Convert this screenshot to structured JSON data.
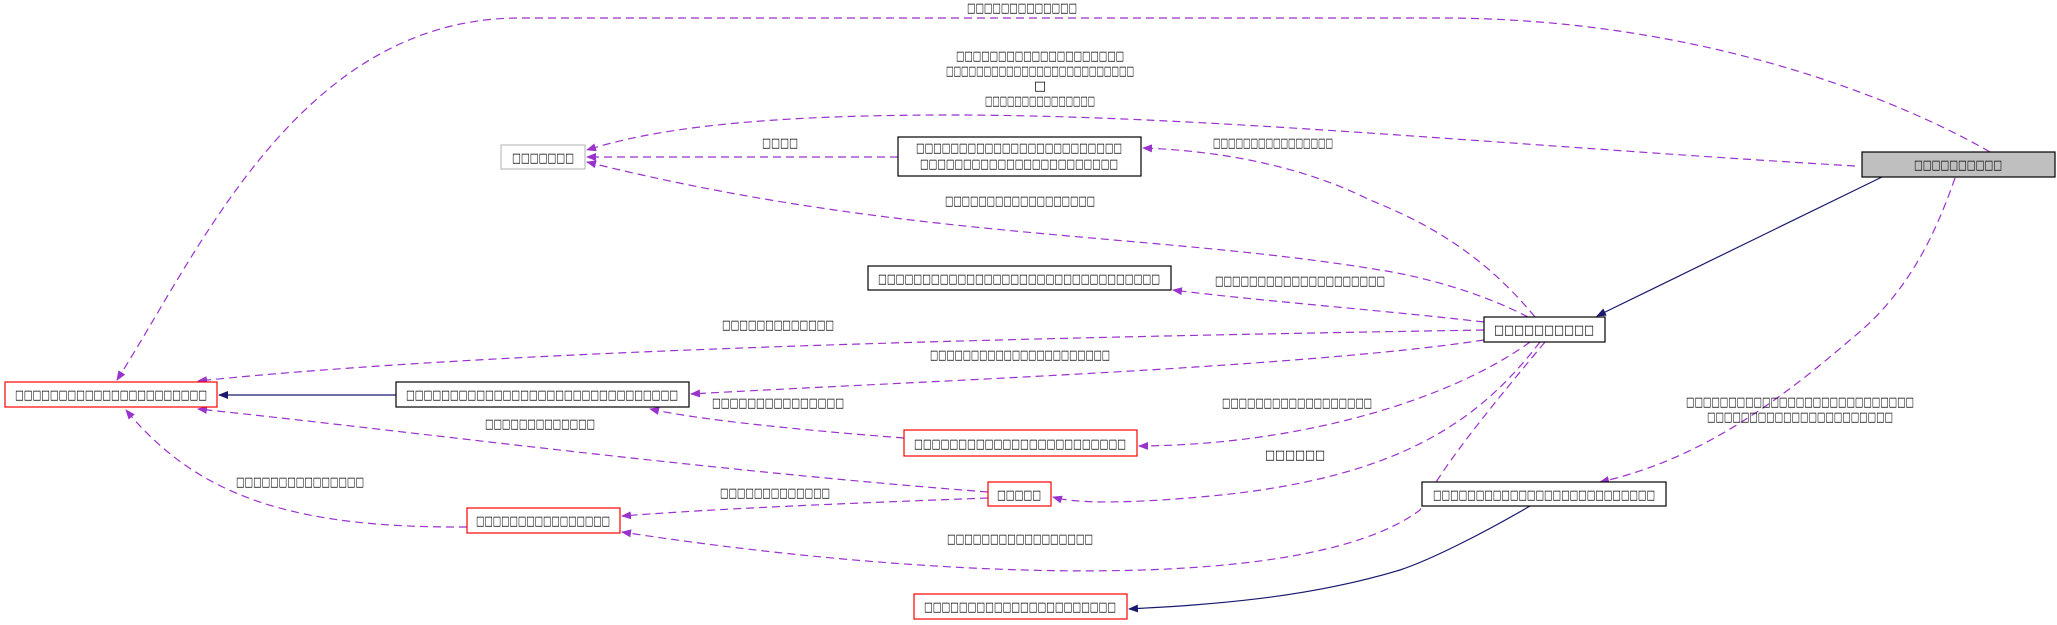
{
  "nodes": {
    "n1": {
      "lines": [
        "□□□□□□□□□□"
      ],
      "fill": "#bfbfbf",
      "stroke": "#000000"
    },
    "n2": {
      "lines": [
        "□□□□□□□□□□"
      ],
      "fill": "#ffffff",
      "stroke": "#000000"
    },
    "n3": {
      "lines": [
        "□□□□□□□"
      ],
      "fill": "#ffffff",
      "stroke": "#bfbfbf"
    },
    "n4": {
      "lines": [
        "□□□□□□□□□□□□□□□□□□□□□□□□",
        "□□□□□□□□□□□□□□□□□□□□□□□"
      ],
      "fill": "#ffffff",
      "stroke": "#000000"
    },
    "n5": {
      "lines": [
        "□□□□□□□□□□□□□□□□□□□□□□□□□□□□□□□□"
      ],
      "fill": "#ffffff",
      "stroke": "#000000"
    },
    "n6": {
      "lines": [
        "□□□□□□□□□□□□□□□□□□□□□□"
      ],
      "fill": "#ffffff",
      "stroke": "#ff0000"
    },
    "n7": {
      "lines": [
        "□□□□□□□□□□□□□□□□□□□□□□□□□□□□□□□"
      ],
      "fill": "#ffffff",
      "stroke": "#000000"
    },
    "n8": {
      "lines": [
        "□□□□□□□□□□□□□□□□□□□□□□□□"
      ],
      "fill": "#ffffff",
      "stroke": "#ff0000"
    },
    "n9": {
      "lines": [
        "□□□□□"
      ],
      "fill": "#ffffff",
      "stroke": "#ff0000"
    },
    "n10": {
      "lines": [
        "□□□□□□□□□□□□□□□□"
      ],
      "fill": "#ffffff",
      "stroke": "#ff0000"
    },
    "n11": {
      "lines": [
        "□□□□□□□□□□□□□□□□□□□□□□□□□□"
      ],
      "fill": "#ffffff",
      "stroke": "#000000"
    },
    "n12": {
      "lines": [
        "□□□□□□□□□□□□□□□□□□□□□□"
      ],
      "fill": "#ffffff",
      "stroke": "#ff0000"
    }
  },
  "edge_labels": {
    "n1_n6": [
      "□□□□□□□□□□□□□"
    ],
    "n1_n3": [
      "□□□□□□□□□□□□□□□□□□□□",
      "□□□□□□□□□□□□□□□□□□□□□□□□□",
      "□",
      "□□□□□□□□□□□□□□□"
    ],
    "n4_n3": [
      "□□□□"
    ],
    "n2_n4": [
      "□□□□□□□□□□□□□□□□"
    ],
    "n2_n3": [
      "□□□□□□□□□□□□□□□□□□"
    ],
    "n2_n5": [
      "□□□□□□□□□□□□□□□□□□□□"
    ],
    "n2_n6": [
      "□□□□□□□□□□□□□"
    ],
    "n2_n7": [
      "□□□□□□□□□□□□□□□□□□□□□□"
    ],
    "n2_n8": [
      "□□□□□□□□□□□□□□□□□□"
    ],
    "n8_n7": [
      "□□□□□□□□□□□□□□□"
    ],
    "n9_n6": [
      "□□□□□□□□□□□□□"
    ],
    "n2_n9": [
      "□□□□□□"
    ],
    "n10_n6": [
      "□□□□□□□□□□□□□□□"
    ],
    "n9_n10": [
      "□□□□□□□□□□□□□"
    ],
    "n2_n10": [
      "□□□□□□□□□□□□□□□□□"
    ],
    "n1_n11": [
      "□□□□□□□□□□□□□□□□□□□□□□□□□□□",
      "□□□□□□□□□□□□□□□□□□□□□□"
    ]
  },
  "colors": {
    "dependency_edge": "#9a32cd",
    "inheritance_edge": "#191970",
    "incomplete_node": "#ff0000"
  }
}
